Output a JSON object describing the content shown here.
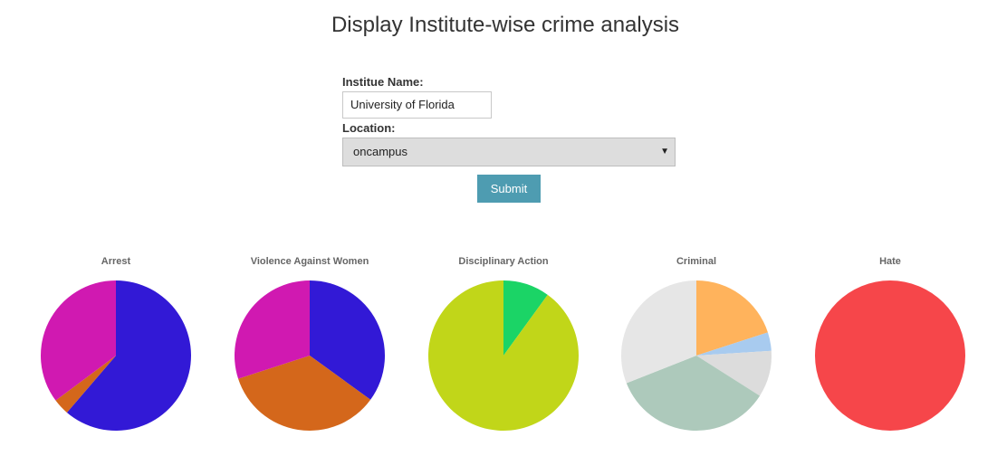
{
  "page": {
    "title": "Display Institute-wise crime analysis"
  },
  "form": {
    "institute_label": "Institue Name:",
    "institute_value": "University of Florida",
    "location_label": "Location:",
    "location_selected": "oncampus",
    "submit_label": "Submit"
  },
  "colors": {
    "submit_bg": "#4e9cb1",
    "select_bg": "#dddddd"
  },
  "icons": {
    "select_arrow": "dropdown-arrow-icon"
  },
  "chart_data": [
    {
      "type": "pie",
      "title": "Arrest",
      "slices": [
        {
          "value": 0.613,
          "color": "#3219d6"
        },
        {
          "value": 0.035,
          "color": "#d4671b"
        },
        {
          "value": 0.352,
          "color": "#d019b1"
        }
      ]
    },
    {
      "type": "pie",
      "title": "Violence Against Women",
      "slices": [
        {
          "value": 0.35,
          "color": "#3219d6"
        },
        {
          "value": 0.35,
          "color": "#d4671b"
        },
        {
          "value": 0.3,
          "color": "#d019b1"
        }
      ]
    },
    {
      "type": "pie",
      "title": "Disciplinary Action",
      "slices": [
        {
          "value": 0.1,
          "color": "#1bd466"
        },
        {
          "value": 0.9,
          "color": "#c1d619"
        }
      ]
    },
    {
      "type": "pie",
      "title": "Criminal",
      "slices": [
        {
          "value": 0.2,
          "color": "#ffb35c"
        },
        {
          "value": 0.04,
          "color": "#a8cbef"
        },
        {
          "value": 0.1,
          "color": "#dcdcdc"
        },
        {
          "value": 0.35,
          "color": "#adc9bb"
        },
        {
          "value": 0.31,
          "color": "#e6e6e6"
        }
      ]
    },
    {
      "type": "pie",
      "title": "Hate",
      "slices": [
        {
          "value": 1.0,
          "color": "#f6464a"
        }
      ]
    }
  ]
}
